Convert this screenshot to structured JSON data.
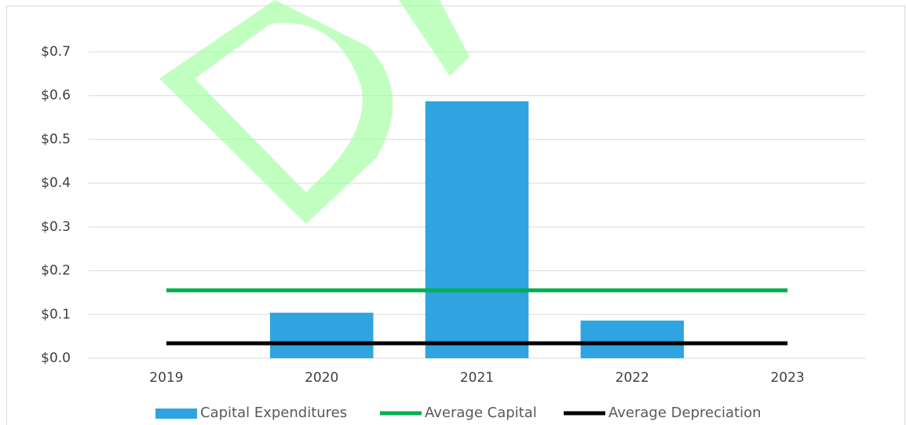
{
  "chart_data": {
    "type": "bar",
    "categories": [
      "2019",
      "2020",
      "2021",
      "2022",
      "2023"
    ],
    "series": [
      {
        "name": "Capital Expenditures",
        "type": "bar",
        "color": "#2fa4e0",
        "values": [
          0,
          0.104,
          0.587,
          0.086,
          0
        ]
      },
      {
        "name": "Average Capital",
        "type": "line",
        "color": "#00b050",
        "values": [
          0.155,
          0.155,
          0.155,
          0.155,
          0.155
        ]
      },
      {
        "name": "Average Depreciation",
        "type": "line",
        "color": "#000000",
        "values": [
          0.034,
          0.034,
          0.034,
          0.034,
          0.034
        ]
      }
    ],
    "ylim": [
      0,
      0.7
    ],
    "yticks": [
      {
        "value": 0,
        "label": "$0.0"
      },
      {
        "value": 0.1,
        "label": "$0.1"
      },
      {
        "value": 0.2,
        "label": "$0.2"
      },
      {
        "value": 0.3,
        "label": "$0.3"
      },
      {
        "value": 0.4,
        "label": "$0.4"
      },
      {
        "value": 0.5,
        "label": "$0.5"
      },
      {
        "value": 0.6,
        "label": "$0.6"
      },
      {
        "value": 0.7,
        "label": "$0.7"
      }
    ],
    "grid": true,
    "legend": "bottom"
  }
}
